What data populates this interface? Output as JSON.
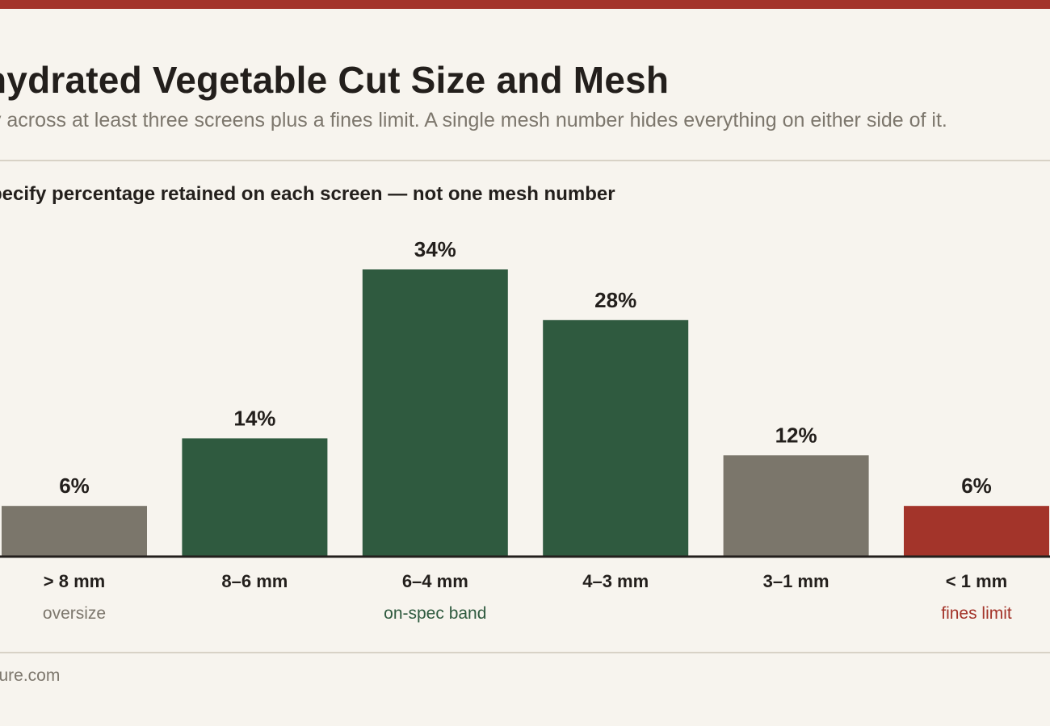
{
  "header": {
    "title": "hydrated Vegetable Cut Size and Mesh",
    "subtitle": "fy across at least three screens plus a fines limit. A single mesh number hides everything on either side of it."
  },
  "footer": {
    "source": "sure.com"
  },
  "colors": {
    "accent": "#a3342a",
    "on_spec": "#2f5a3f",
    "off_spec": "#7b766b",
    "fines": "#a3342a",
    "background": "#f7f4ee",
    "text": "#231f1c",
    "muted": "#7d776d"
  },
  "chart_data": {
    "type": "bar",
    "title": "pecify percentage retained on each screen — not one mesh number",
    "xlabel": "",
    "ylabel": "",
    "categories": [
      "> 8 mm",
      "8–6 mm",
      "6–4 mm",
      "4–3 mm",
      "3–1 mm",
      "< 1 mm"
    ],
    "values": [
      6,
      14,
      34,
      28,
      12,
      6
    ],
    "value_labels": [
      "6%",
      "14%",
      "34%",
      "28%",
      "12%",
      "6%"
    ],
    "bar_colors": [
      "#7b766b",
      "#2f5a3f",
      "#2f5a3f",
      "#2f5a3f",
      "#7b766b",
      "#a3342a"
    ],
    "ylim": [
      0,
      34
    ],
    "grid": false,
    "legend": "none",
    "annotations": [
      {
        "text": "oversize",
        "category_index": 0,
        "color": "#7d776d"
      },
      {
        "text": "on-spec band",
        "category_index": 2,
        "color": "#2f5a3f"
      },
      {
        "text": "fines limit",
        "category_index": 5,
        "color": "#a3342a"
      }
    ]
  }
}
